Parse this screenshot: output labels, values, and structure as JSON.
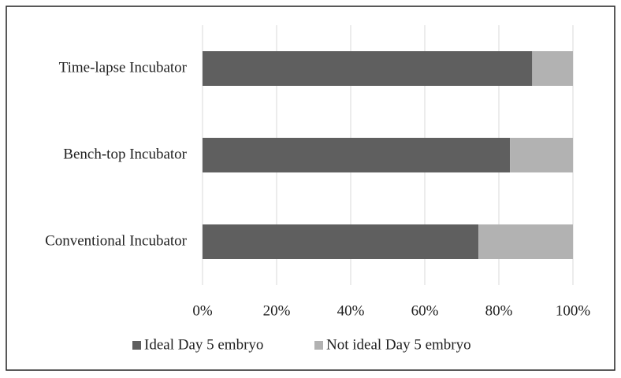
{
  "chart_data": {
    "type": "stacked-barh",
    "categories": [
      "Time-lapse Incubator",
      "Bench-top Incubator",
      "Conventional Incubator"
    ],
    "series": [
      {
        "name": "Ideal Day 5 embryo",
        "color": "#5f5f5f",
        "values": [
          89,
          83,
          74.5
        ]
      },
      {
        "name": "Not ideal Day 5 embryo",
        "color": "#b2b2b2",
        "values": [
          11,
          17,
          25.5
        ]
      }
    ],
    "xlim": [
      0,
      100
    ],
    "xticks": [
      {
        "value": 0,
        "label": "0%"
      },
      {
        "value": 20,
        "label": "20%"
      },
      {
        "value": 40,
        "label": "40%"
      },
      {
        "value": 60,
        "label": "60%"
      },
      {
        "value": 80,
        "label": "80%"
      },
      {
        "value": 100,
        "label": "100%"
      }
    ],
    "grid": true,
    "legend": "bottom"
  }
}
